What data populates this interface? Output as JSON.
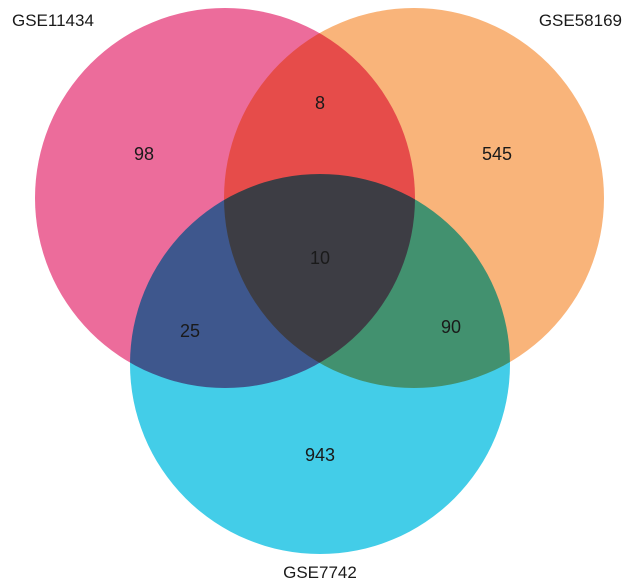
{
  "venn": {
    "sets": [
      {
        "name": "GSE11434",
        "color": "#ec6c9b"
      },
      {
        "name": "GSE58169",
        "color": "#f9b47a"
      },
      {
        "name": "GSE7742",
        "color": "#43cde8"
      }
    ],
    "counts": {
      "only_gse11434": "98",
      "only_gse58169": "545",
      "only_gse7742": "943",
      "gse11434_gse58169": "8",
      "gse11434_gse7742": "25",
      "gse58169_gse7742": "90",
      "all_three": "10"
    }
  }
}
